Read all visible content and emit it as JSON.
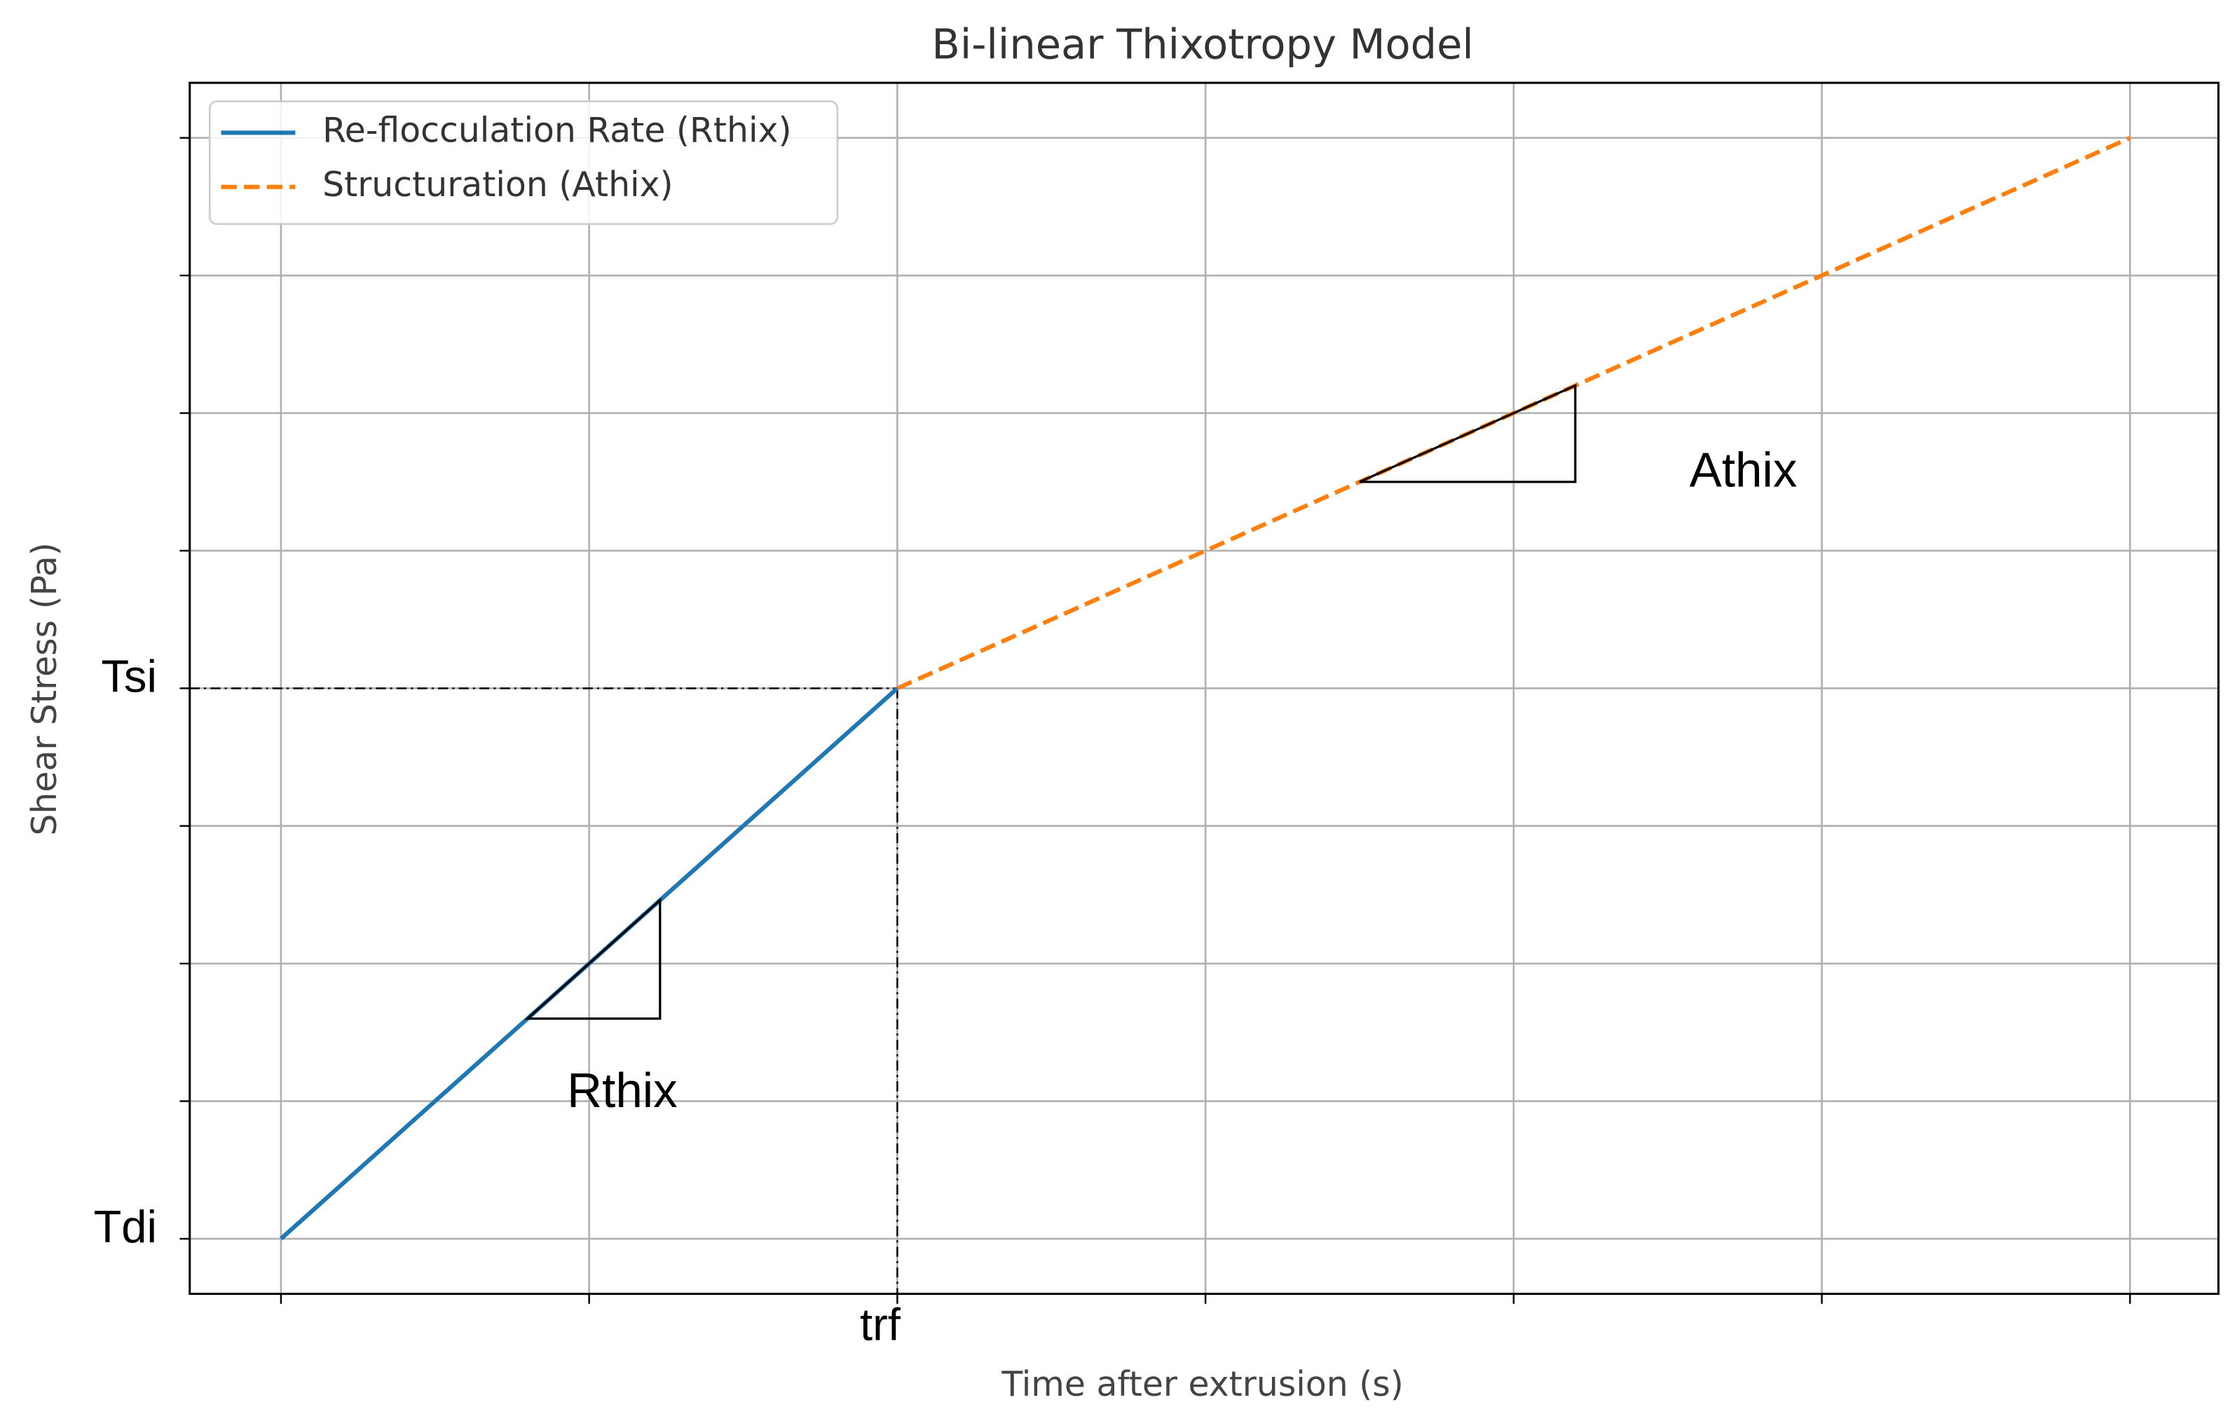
{
  "chart_data": {
    "type": "line",
    "title": "Bi-linear Thixotropy Model",
    "x_label": "Time after extrusion (s)",
    "y_label": "Shear Stress (Pa)",
    "series": [
      {
        "name": "Re-flocculation Rate (Rthix)",
        "color": "#1f77b4",
        "linestyle": "solid",
        "x": [
          0,
          2
        ],
        "values": [
          0,
          4
        ]
      },
      {
        "name": "Structuration (Athix)",
        "color": "#ff7f0e",
        "linestyle": "dashed",
        "x": [
          2,
          6
        ],
        "values": [
          4,
          8
        ]
      }
    ],
    "xlim": [
      -0.296,
      6.287
    ],
    "ylim": [
      -0.4,
      8.4
    ],
    "xticks": [
      {
        "value": 0,
        "label": null
      },
      {
        "value": 1,
        "label": null
      },
      {
        "value": 2,
        "label": "trf"
      },
      {
        "value": 3,
        "label": null
      },
      {
        "value": 4,
        "label": null
      },
      {
        "value": 5,
        "label": null
      },
      {
        "value": 6,
        "label": null
      }
    ],
    "yticks": [
      {
        "value": 0,
        "label": "Tdi"
      },
      {
        "value": 1,
        "label": null
      },
      {
        "value": 2,
        "label": null
      },
      {
        "value": 3,
        "label": null
      },
      {
        "value": 4,
        "label": "Tsi"
      },
      {
        "value": 5,
        "label": null
      },
      {
        "value": 6,
        "label": null
      },
      {
        "value": 7,
        "label": null
      },
      {
        "value": 8,
        "label": null
      }
    ],
    "grid": true,
    "legend": "upper left",
    "slope_triangles": [
      {
        "label": "Rthix",
        "label_position": "below",
        "x": [
          0.8,
          1.23
        ],
        "y": [
          1.6,
          2.46
        ]
      },
      {
        "label": "Athix",
        "label_position": "right",
        "x": [
          3.5,
          4.2
        ],
        "y": [
          5.5,
          6.2
        ]
      }
    ]
  }
}
